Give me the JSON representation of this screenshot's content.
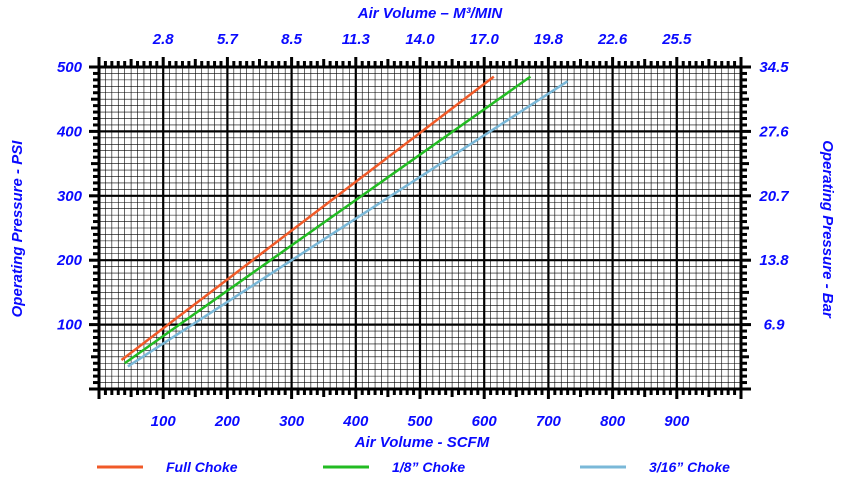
{
  "chart_data": {
    "type": "line",
    "title": "",
    "xlabel": "Air Volume - SCFM",
    "x2label": "Air Volume – M³/MIN",
    "ylabel": "Operating Pressure - PSI",
    "y2label": "Operating Pressure - Bar",
    "xlim": [
      0,
      1000
    ],
    "ylim": [
      0,
      500
    ],
    "x_ticks": [
      "100",
      "200",
      "300",
      "400",
      "500",
      "600",
      "700",
      "800",
      "900"
    ],
    "x2_ticks": [
      "2.8",
      "5.7",
      "8.5",
      "11.3",
      "14.0",
      "17.0",
      "19.8",
      "22.6",
      "25.5"
    ],
    "y_ticks": [
      "100",
      "200",
      "300",
      "400",
      "500"
    ],
    "y2_ticks": [
      "6.9",
      "13.8",
      "20.7",
      "27.6",
      "34.5"
    ],
    "grid": true,
    "legend_position": "bottom",
    "series": [
      {
        "name": "Full Choke",
        "color": "#f05a28",
        "x": [
          35,
          615
        ],
        "y": [
          45,
          485
        ]
      },
      {
        "name": "1/8” Choke",
        "color": "#22bb22",
        "x": [
          40,
          672
        ],
        "y": [
          40,
          485
        ]
      },
      {
        "name": "3/16” Choke",
        "color": "#7ab8d8",
        "x": [
          45,
          730
        ],
        "y": [
          35,
          478
        ]
      }
    ]
  }
}
